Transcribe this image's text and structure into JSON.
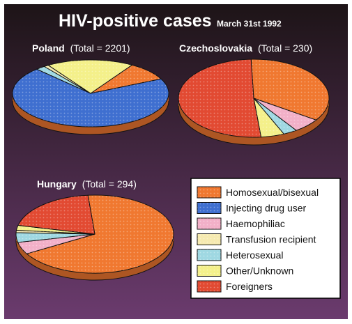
{
  "title": "HIV-positive cases",
  "subtitle": "March 31st 1992",
  "colors": {
    "background_top": "#1d1417",
    "background_bottom": "#6b3b6e",
    "homosexual": "#f07830",
    "drug_user": "#3f6fd0",
    "haemophiliac": "#f2b0c8",
    "transfusion": "#f6eab0",
    "heterosexual": "#9fd8e2",
    "other": "#f4f08a",
    "foreigners": "#e24a32"
  },
  "legend": {
    "items": [
      {
        "label": "Homosexual/bisexual",
        "color_key": "homosexual"
      },
      {
        "label": "Injecting drug user",
        "color_key": "drug_user"
      },
      {
        "label": "Haemophiliac",
        "color_key": "haemophiliac"
      },
      {
        "label": "Transfusion recipient",
        "color_key": "transfusion"
      },
      {
        "label": "Heterosexual",
        "color_key": "heterosexual"
      },
      {
        "label": "Other/Unknown",
        "color_key": "other"
      },
      {
        "label": "Foreigners",
        "color_key": "foreigners"
      }
    ]
  },
  "chart_data": [
    {
      "type": "pie",
      "name": "Poland",
      "total_label": "(Total = 2201)",
      "total": 2201,
      "slices": [
        {
          "category": "Homosexual/bisexual",
          "color_key": "homosexual",
          "percent": 9
        },
        {
          "category": "Injecting drug user",
          "color_key": "drug_user",
          "percent": 70
        },
        {
          "category": "Heterosexual",
          "color_key": "heterosexual",
          "percent": 2
        },
        {
          "category": "Transfusion recipient",
          "color_key": "transfusion",
          "percent": 1
        },
        {
          "category": "Other/Unknown",
          "color_key": "other",
          "percent": 18
        }
      ]
    },
    {
      "type": "pie",
      "name": "Czechoslovakia",
      "total_label": "(Total = 230)",
      "total": 230,
      "slices": [
        {
          "category": "Homosexual/bisexual",
          "color_key": "homosexual",
          "percent": 35
        },
        {
          "category": "Haemophiliac",
          "color_key": "haemophiliac",
          "percent": 6
        },
        {
          "category": "Heterosexual",
          "color_key": "heterosexual",
          "percent": 3
        },
        {
          "category": "Other/Unknown",
          "color_key": "other",
          "percent": 5
        },
        {
          "category": "Foreigners",
          "color_key": "foreigners",
          "percent": 51
        }
      ]
    },
    {
      "type": "pie",
      "name": "Hungary",
      "total_label": "(Total = 294)",
      "total": 294,
      "slices": [
        {
          "category": "Homosexual/bisexual",
          "color_key": "homosexual",
          "percent": 68
        },
        {
          "category": "Haemophiliac",
          "color_key": "haemophiliac",
          "percent": 5
        },
        {
          "category": "Heterosexual",
          "color_key": "heterosexual",
          "percent": 4
        },
        {
          "category": "Transfusion recipient",
          "color_key": "transfusion",
          "percent": 1
        },
        {
          "category": "Other/Unknown",
          "color_key": "other",
          "percent": 2
        },
        {
          "category": "Foreigners",
          "color_key": "foreigners",
          "percent": 20
        }
      ]
    }
  ]
}
